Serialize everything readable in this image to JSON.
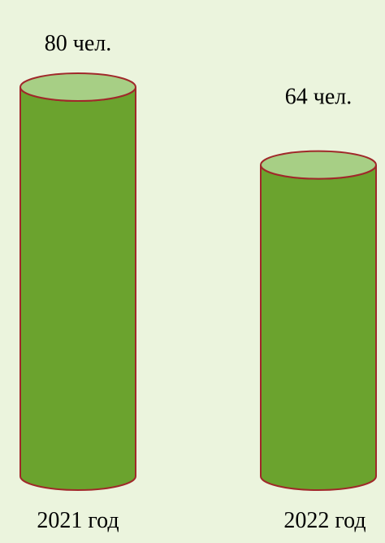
{
  "chart_data": {
    "type": "bar",
    "style": "cylinder",
    "categories": [
      "2021 год",
      "2022 год"
    ],
    "values": [
      80,
      64
    ],
    "data_labels": [
      "80 чел.",
      "64 чел."
    ],
    "title": "",
    "xlabel": "",
    "ylabel": "",
    "grid": false,
    "legend": "none"
  },
  "colors": {
    "background": "#EBF4DD",
    "bar_body": "#6BA32E",
    "bar_top": "#A7CF85",
    "bar_outline": "#A0282A",
    "text": "#000000"
  }
}
